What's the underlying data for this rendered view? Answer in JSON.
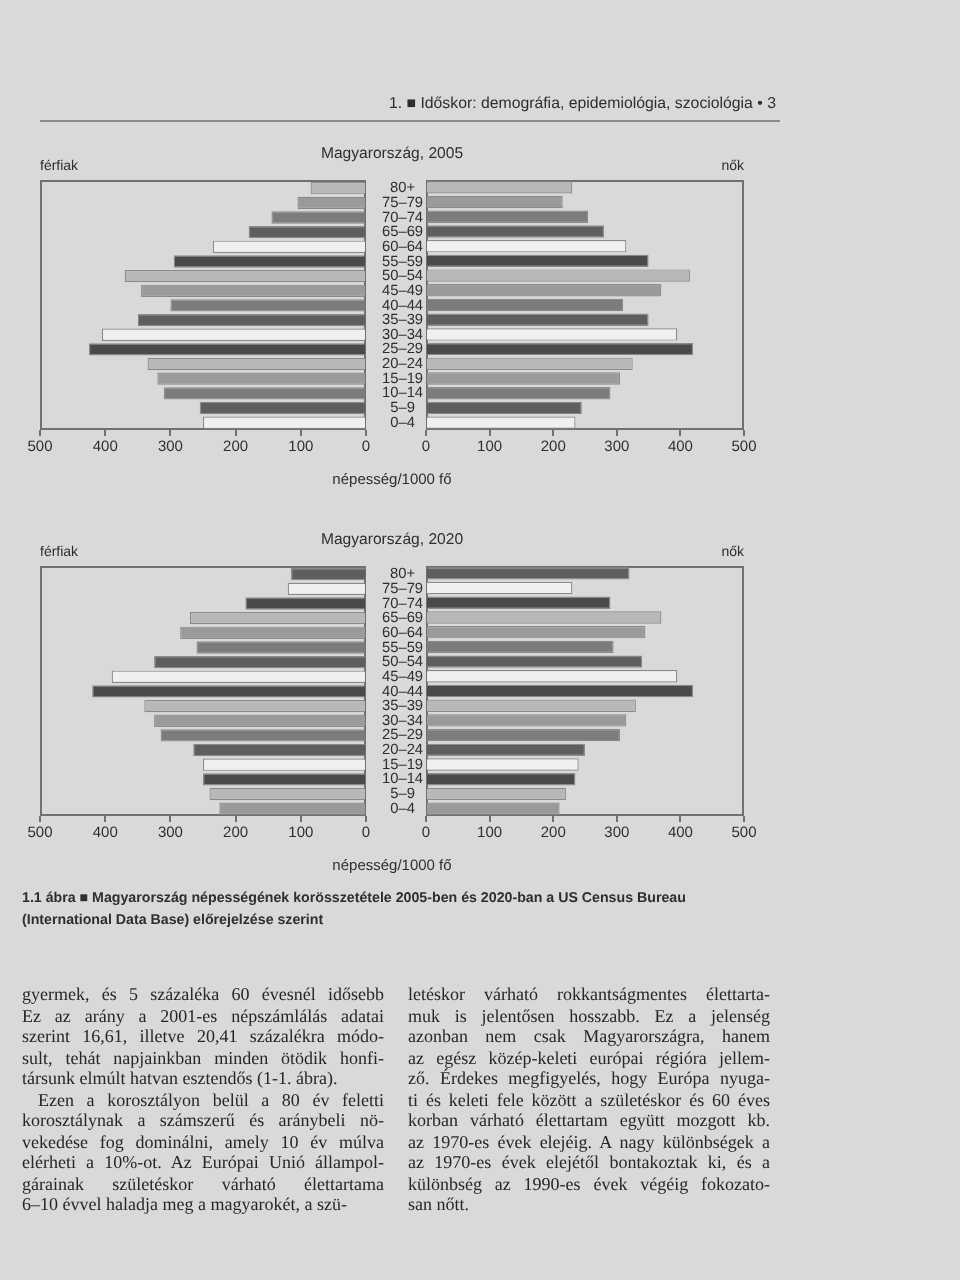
{
  "chart_data": [
    {
      "type": "bar",
      "orientation": "horizontal",
      "title": "Magyarország, 2005",
      "xlabel": "népesség/1000 fő",
      "categories": [
        "80+",
        "75–79",
        "70–74",
        "65–69",
        "60–64",
        "55–59",
        "50–54",
        "45–49",
        "40–44",
        "35–39",
        "30–34",
        "25–29",
        "20–24",
        "15–19",
        "10–14",
        "5–9",
        "0–4"
      ],
      "series": [
        {
          "name": "férfiak",
          "colors": [
            "#b8b8b8",
            "#9a9a9a",
            "#7c7c7c",
            "#5e5e5e",
            "#f0f0ee",
            "#4a4a4a",
            "#b8b8b8",
            "#9a9a9a",
            "#7c7c7c",
            "#5e5e5e",
            "#f0f0ee",
            "#4a4a4a",
            "#b8b8b8",
            "#9a9a9a",
            "#7c7c7c",
            "#5e5e5e",
            "#f0f0ee"
          ],
          "values": [
            85,
            105,
            145,
            180,
            235,
            295,
            370,
            345,
            300,
            350,
            405,
            425,
            335,
            320,
            310,
            255,
            250
          ]
        }
      ],
      "xlim": [
        500,
        0
      ],
      "xticks": [
        500,
        400,
        300,
        200,
        100,
        0
      ],
      "annotations": [
        "1. ■ Időskor: demográfia, epidemiológia, szociológia • 3"
      ]
    },
    {
      "type": "bar",
      "orientation": "horizontal",
      "categories": [
        "80+",
        "75–79",
        "70–74",
        "65–69",
        "60–64",
        "55–59",
        "50–54",
        "45–49",
        "40–44",
        "35–39",
        "30–34",
        "25–29",
        "20–24",
        "15–19",
        "10–14",
        "5–9",
        "0–4"
      ],
      "series": [
        {
          "name": "nők",
          "colors": [
            "#b8b8b8",
            "#9a9a9a",
            "#7c7c7c",
            "#5e5e5e",
            "#f0f0ee",
            "#4a4a4a",
            "#b8b8b8",
            "#9a9a9a",
            "#7c7c7c",
            "#5e5e5e",
            "#f0f0ee",
            "#4a4a4a",
            "#b8b8b8",
            "#9a9a9a",
            "#7c7c7c",
            "#5e5e5e",
            "#f0f0ee"
          ],
          "values": [
            230,
            215,
            255,
            280,
            315,
            350,
            415,
            370,
            310,
            350,
            395,
            420,
            325,
            305,
            290,
            245,
            235
          ]
        }
      ],
      "xlim": [
        0,
        500
      ],
      "xticks": [
        0,
        100,
        200,
        300,
        400,
        500
      ],
      "tick_labels": "x"
    },
    {
      "type": "bar",
      "orientation": "horizontal",
      "title": "Magyarország, 2020",
      "xlabel": "népesség/1000 fő",
      "categories": [
        "80+",
        "75–79",
        "70–74",
        "65–69",
        "60–64",
        "55–59",
        "50–54",
        "45–49",
        "40–44",
        "35–39",
        "30–34",
        "25–29",
        "20–24",
        "15–19",
        "10–14",
        "5–9",
        "0–4"
      ],
      "series": [
        {
          "name": "férfiak",
          "colors": [
            "#5e5e5e",
            "#f0f0ee",
            "#4a4a4a",
            "#b8b8b8",
            "#9a9a9a",
            "#7c7c7c",
            "#5e5e5e",
            "#f0f0ee",
            "#4a4a4a",
            "#b8b8b8",
            "#9a9a9a",
            "#7c7c7c",
            "#5e5e5e",
            "#f0f0ee",
            "#4a4a4a",
            "#b8b8b8",
            "#9a9a9a"
          ],
          "values": [
            115,
            120,
            185,
            270,
            285,
            260,
            325,
            390,
            420,
            340,
            325,
            315,
            265,
            250,
            250,
            240,
            225
          ]
        }
      ],
      "xlim": [
        500,
        0
      ],
      "xticks": [
        500,
        400,
        300,
        200,
        100,
        0
      ]
    },
    {
      "type": "bar",
      "orientation": "horizontal",
      "categories": [
        "80+",
        "75–79",
        "70–74",
        "65–69",
        "60–64",
        "55–59",
        "50–54",
        "45–49",
        "40–44",
        "35–39",
        "30–34",
        "25–29",
        "20–24",
        "15–19",
        "10–14",
        "5–9",
        "0–4"
      ],
      "series": [
        {
          "name": "nők",
          "colors": [
            "#5e5e5e",
            "#f0f0ee",
            "#4a4a4a",
            "#b8b8b8",
            "#9a9a9a",
            "#7c7c7c",
            "#5e5e5e",
            "#f0f0ee",
            "#4a4a4a",
            "#b8b8b8",
            "#9a9a9a",
            "#7c7c7c",
            "#5e5e5e",
            "#f0f0ee",
            "#4a4a4a",
            "#b8b8b8",
            "#9a9a9a"
          ],
          "values": [
            320,
            230,
            290,
            370,
            345,
            295,
            340,
            395,
            420,
            330,
            315,
            305,
            250,
            240,
            235,
            220,
            210
          ]
        }
      ],
      "xlim": [
        0,
        500
      ],
      "xticks": [
        0,
        100,
        200,
        300,
        400,
        500
      ],
      "tick_labels": "x",
      "annotations": [
        "1.1 ábra ■ Magyarország népességének korösszetétele 2005-ben és 2020-ban a US Census Bureau\n(International Data Base) előrejelzése szerint",
        "gyermek, és 5 százaléka 60 évesnél idősebb\nEz az arány a 2001-es népszámlálás adatai\nszerint 16,61, illetve 20,41 százalékra módo-\nsult, tehát napjainkban minden ötödik honfi-\ntársunk elmúlt hatvan esztendős (1-1. ábra).",
        "Ezen a korosztályon belül a 80 év feletti\nkorosztálynak a számszerű és aránybeli nö-\nvekedése fog dominálni, amely 10 év múlva\nelérheti a 10%-ot. Az Európai Unió állampol-\ngárainak születéskor várható élettartama\n6–10 évvel haladja meg a magyarokét, a szü-",
        "letéskor várható rokkantságmentes élettarta-\nmuk is jelentősen hosszabb. Ez a jelenség\nazonban nem csak Magyarországra, hanem\naz egész közép-keleti európai régióra jellem-\nző. Érdekes megfigyelés, hogy Európa nyuga-\nti és keleti fele között a születéskor és 60 éves\nkorban várható élettartam együtt mozgott kb.\naz 1970-es évek elejéig. A nagy különbségek a\naz 1970-es évek elejétől bontakoztak ki, és a\nkülönbség az 1990-es évek végéig fokozato-\nsan nőtt."
      ]
    }
  ]
}
